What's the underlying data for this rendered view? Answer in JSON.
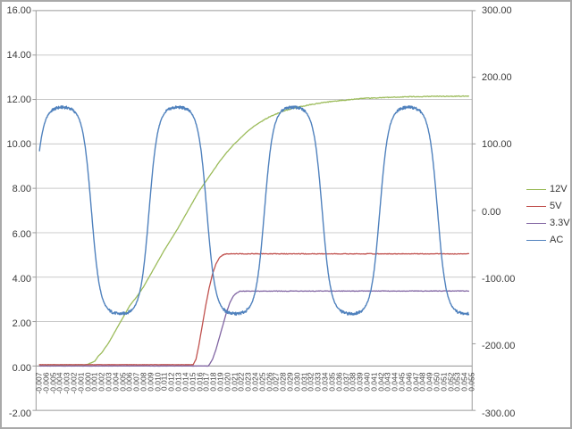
{
  "window": {
    "background": "#ffffff",
    "border_color": "#a9a9a9",
    "title": ""
  },
  "chart_data": {
    "type": "line",
    "title": "",
    "xlabel": "",
    "ylabel": "",
    "grid": "horizontal-only",
    "plot_background": "#ffffff",
    "gridline_color": "#c9c9c9",
    "axis_line_color": "#9b9b9b",
    "label_color": "#3b3b3b",
    "x_axis": {
      "t_min": -0.007,
      "t_max": 0.055,
      "t_step": 0.001,
      "label_rotation": -90,
      "labels": [
        "-0.007",
        "-0.006",
        "-0.005",
        "-0.004",
        "-0.003",
        "-0.002",
        "-0.001",
        "0.000",
        "0.001",
        "0.002",
        "0.003",
        "0.004",
        "0.005",
        "0.006",
        "0.007",
        "0.008",
        "0.009",
        "0.010",
        "0.011",
        "0.012",
        "0.013",
        "0.014",
        "0.015",
        "0.016",
        "0.017",
        "0.018",
        "0.019",
        "0.020",
        "0.021",
        "0.022",
        "0.023",
        "0.024",
        "0.025",
        "0.026",
        "0.027",
        "0.028",
        "0.029",
        "0.030",
        "0.031",
        "0.032",
        "0.033",
        "0.034",
        "0.035",
        "0.036",
        "0.037",
        "0.038",
        "0.039",
        "0.040",
        "0.041",
        "0.042",
        "0.043",
        "0.044",
        "0.045",
        "0.046",
        "0.047",
        "0.048",
        "0.049",
        "0.050",
        "0.051",
        "0.052",
        "0.053",
        "0.054",
        "0.055"
      ]
    },
    "y_axis_left": {
      "min": -2,
      "max": 16,
      "step": 2,
      "labels": [
        "16.00",
        "14.00",
        "12.00",
        "10.00",
        "8.00",
        "6.00",
        "4.00",
        "2.00",
        "0.00",
        "-2.00"
      ]
    },
    "y_axis_right": {
      "min": -300,
      "max": 300,
      "step": 100,
      "labels": [
        "300.00",
        "200.00",
        "100.00",
        "0.00",
        "-100.00",
        "-200.00",
        "-300.00"
      ]
    },
    "legend": {
      "position": "right",
      "items": [
        {
          "label": "12V",
          "color": "#9BBB59"
        },
        {
          "label": "5V",
          "color": "#C0504D"
        },
        {
          "label": "3.3V",
          "color": "#8064A2"
        },
        {
          "label": "AC",
          "color": "#4F81BD"
        }
      ]
    },
    "series": [
      {
        "name": "12V",
        "axis": "left",
        "color": "#9BBB59",
        "width": 1.3,
        "steady_state": 12.15,
        "keypoints": [
          [
            -0.007,
            0.05
          ],
          [
            -0.0005,
            0.05
          ],
          [
            0.0,
            0.08
          ],
          [
            0.001,
            0.22
          ],
          [
            0.0015,
            0.45
          ],
          [
            0.002,
            0.6
          ],
          [
            0.003,
            1.05
          ],
          [
            0.004,
            1.6
          ],
          [
            0.005,
            2.15
          ],
          [
            0.006,
            2.7
          ],
          [
            0.007,
            3.1
          ],
          [
            0.008,
            3.55
          ],
          [
            0.009,
            4.1
          ],
          [
            0.01,
            4.65
          ],
          [
            0.011,
            5.2
          ],
          [
            0.012,
            5.7
          ],
          [
            0.013,
            6.2
          ],
          [
            0.014,
            6.75
          ],
          [
            0.015,
            7.3
          ],
          [
            0.016,
            7.85
          ],
          [
            0.017,
            8.3
          ],
          [
            0.018,
            8.75
          ],
          [
            0.019,
            9.2
          ],
          [
            0.02,
            9.6
          ],
          [
            0.021,
            9.95
          ],
          [
            0.022,
            10.25
          ],
          [
            0.023,
            10.55
          ],
          [
            0.024,
            10.8
          ],
          [
            0.025,
            11.0
          ],
          [
            0.026,
            11.18
          ],
          [
            0.027,
            11.32
          ],
          [
            0.028,
            11.45
          ],
          [
            0.029,
            11.55
          ],
          [
            0.03,
            11.63
          ],
          [
            0.032,
            11.76
          ],
          [
            0.034,
            11.86
          ],
          [
            0.036,
            11.94
          ],
          [
            0.038,
            12.0
          ],
          [
            0.04,
            12.05
          ],
          [
            0.043,
            12.09
          ],
          [
            0.046,
            12.12
          ],
          [
            0.05,
            12.14
          ],
          [
            0.055,
            12.15
          ]
        ],
        "noise_amp": 0.018,
        "noise_above": 11.0
      },
      {
        "name": "5V",
        "axis": "left",
        "color": "#C0504D",
        "width": 1.3,
        "steady_state": 5.05,
        "keypoints": [
          [
            -0.007,
            0.06
          ],
          [
            0.0152,
            0.06
          ],
          [
            0.0156,
            0.3
          ],
          [
            0.016,
            0.9
          ],
          [
            0.0165,
            1.8
          ],
          [
            0.017,
            2.7
          ],
          [
            0.0175,
            3.5
          ],
          [
            0.018,
            4.15
          ],
          [
            0.0185,
            4.6
          ],
          [
            0.019,
            4.88
          ],
          [
            0.0195,
            5.0
          ],
          [
            0.02,
            5.05
          ],
          [
            0.055,
            5.05
          ]
        ],
        "noise_amp": 0.015,
        "noise_above": 4.9
      },
      {
        "name": "3.3V",
        "axis": "left",
        "color": "#8064A2",
        "width": 1.3,
        "steady_state": 3.38,
        "keypoints": [
          [
            -0.007,
            0.0
          ],
          [
            0.0174,
            0.0
          ],
          [
            0.018,
            0.3
          ],
          [
            0.0185,
            0.75
          ],
          [
            0.019,
            1.3
          ],
          [
            0.0195,
            1.85
          ],
          [
            0.02,
            2.4
          ],
          [
            0.0205,
            2.85
          ],
          [
            0.021,
            3.15
          ],
          [
            0.0215,
            3.3
          ],
          [
            0.022,
            3.37
          ],
          [
            0.055,
            3.38
          ]
        ],
        "noise_amp": 0.013,
        "noise_above": 3.2
      },
      {
        "name": "AC",
        "axis": "right",
        "color": "#4F81BD",
        "width": 1.4,
        "model": {
          "type": "soft_clipped_sine",
          "frequency_hz": 60,
          "peak_time": 0.013,
          "amplitude": 330,
          "soft_clip_level": 160,
          "plateau_value": 155,
          "noise_amp_plateau": 2.2,
          "noise_amp_slope": 0.7
        }
      }
    ]
  }
}
